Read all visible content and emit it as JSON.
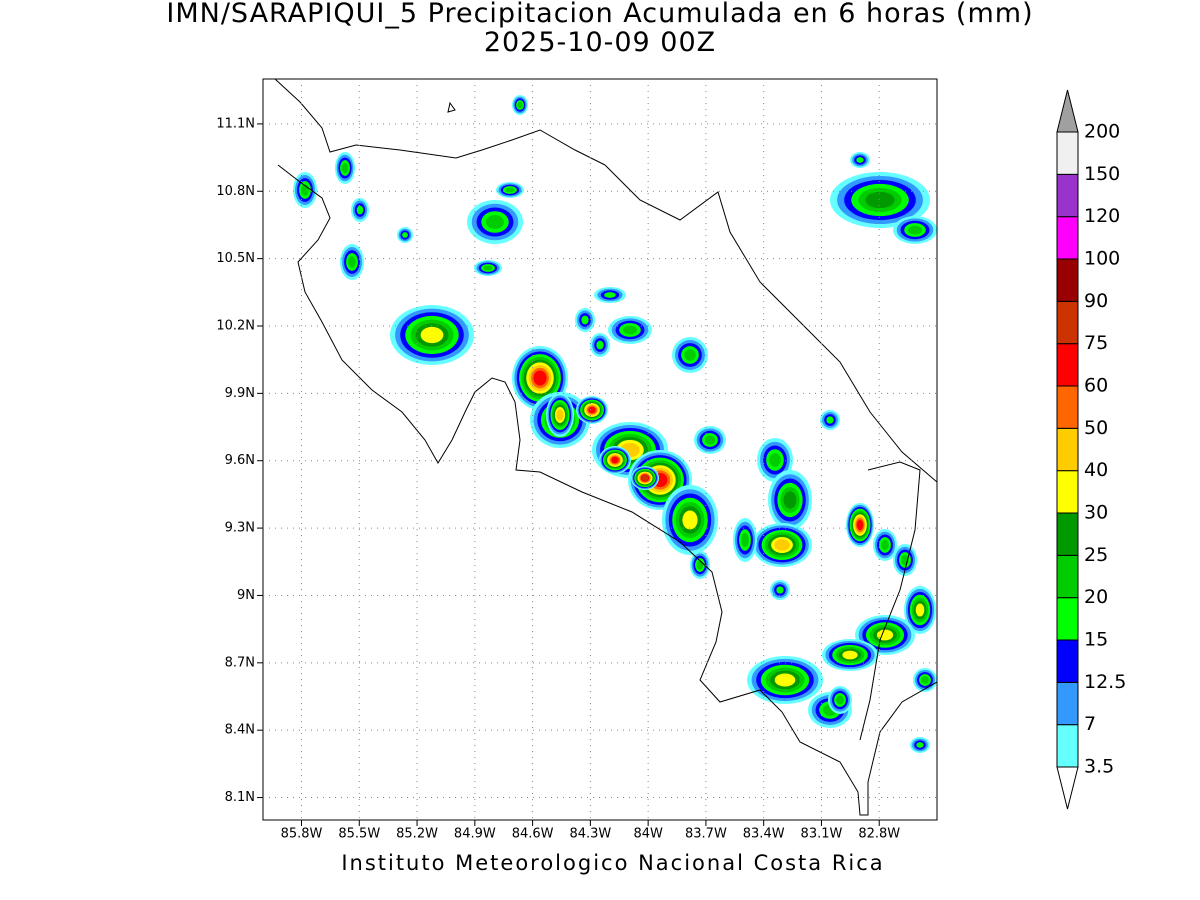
{
  "header": {
    "title": "IMN/SARAPIQUI_5 Precipitacion Acumulada en 6 horas (mm)",
    "subtitle": "2025-10-09 00Z"
  },
  "map": {
    "xlim": [
      -86.0,
      -82.5
    ],
    "ylim": [
      8.0,
      11.3
    ],
    "xticks": [
      {
        "value": -85.8,
        "label": "85.8W"
      },
      {
        "value": -85.5,
        "label": "85.5W"
      },
      {
        "value": -85.2,
        "label": "85.2W"
      },
      {
        "value": -84.9,
        "label": "84.9W"
      },
      {
        "value": -84.6,
        "label": "84.6W"
      },
      {
        "value": -84.3,
        "label": "84.3W"
      },
      {
        "value": -84.0,
        "label": "84W"
      },
      {
        "value": -83.7,
        "label": "83.7W"
      },
      {
        "value": -83.4,
        "label": "83.4W"
      },
      {
        "value": -83.1,
        "label": "83.1W"
      },
      {
        "value": -82.8,
        "label": "82.8W"
      }
    ],
    "yticks": [
      {
        "value": 8.1,
        "label": "8.1N"
      },
      {
        "value": 8.4,
        "label": "8.4N"
      },
      {
        "value": 8.7,
        "label": "8.7N"
      },
      {
        "value": 9.0,
        "label": "9N"
      },
      {
        "value": 9.3,
        "label": "9.3N"
      },
      {
        "value": 9.6,
        "label": "9.6N"
      },
      {
        "value": 9.9,
        "label": "9.9N"
      },
      {
        "value": 10.2,
        "label": "10.2N"
      },
      {
        "value": 10.5,
        "label": "10.5N"
      },
      {
        "value": 10.8,
        "label": "10.8N"
      },
      {
        "value": 11.1,
        "label": "11.1N"
      }
    ],
    "grid": true
  },
  "colorbar": {
    "levels": [
      3.5,
      7,
      12.5,
      15,
      20,
      25,
      30,
      40,
      50,
      60,
      75,
      90,
      100,
      120,
      150,
      200
    ],
    "colors": [
      "#66ffff",
      "#3399ff",
      "#0000ff",
      "#00ff00",
      "#00cc00",
      "#009900",
      "#ffff00",
      "#ffcc00",
      "#ff6600",
      "#ff0000",
      "#cc3300",
      "#990000",
      "#ff00ff",
      "#9933cc",
      "#f0f0f0"
    ],
    "under_color": "#ffffff",
    "over_color": "#a0a0a0"
  },
  "footer": {
    "text": "Instituto Meteorologico Nacional Costa Rica"
  }
}
